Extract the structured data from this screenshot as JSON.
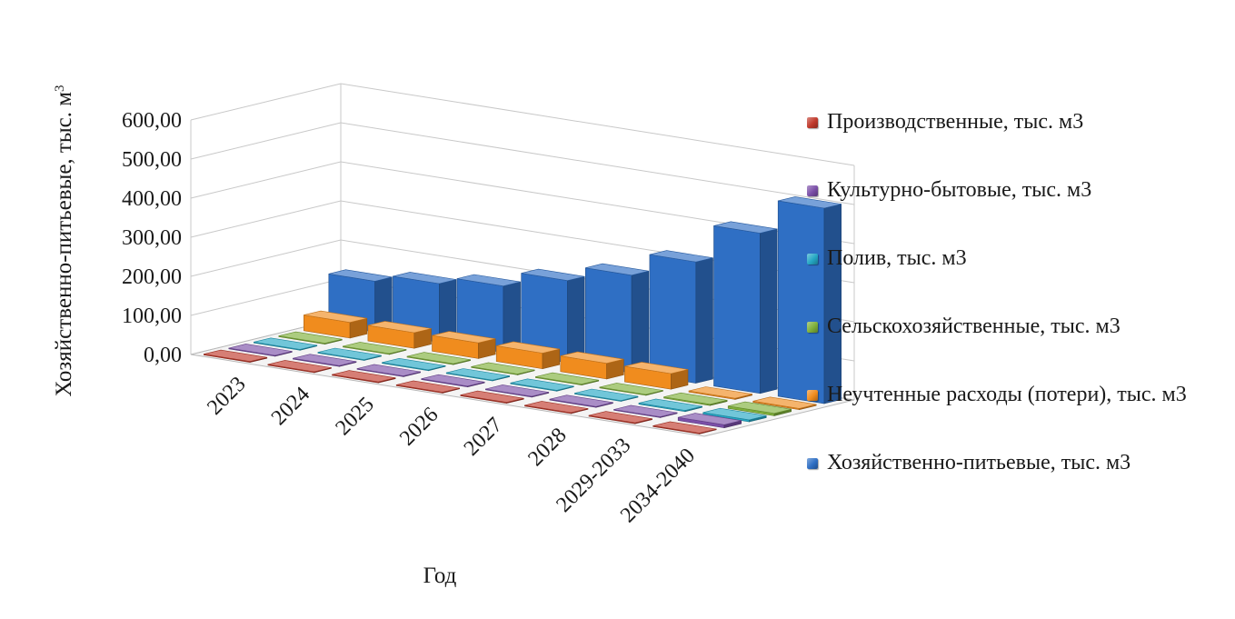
{
  "chart_data": {
    "type": "bar",
    "subtype": "3d-column",
    "categories": [
      "2023",
      "2024",
      "2025",
      "2026",
      "2027",
      "2028",
      "2029-2033",
      "2034-2040"
    ],
    "xlabel": "Год",
    "ylabel": "Хозяйственно-питьевые, тыс. м",
    "ylabel_superscript": "3",
    "ylim": [
      0,
      600
    ],
    "yticks": [
      "0,00",
      "100,00",
      "200,00",
      "300,00",
      "400,00",
      "500,00",
      "600,00"
    ],
    "grid": true,
    "legend_position": "right",
    "series": [
      {
        "name": "Производственные, тыс. м3",
        "color": "#c0392b",
        "values": [
          2,
          2,
          2,
          2,
          2,
          2,
          2,
          2
        ]
      },
      {
        "name": "Культурно-бытовые, тыс. м3",
        "color": "#7b4fa8",
        "values": [
          2,
          2,
          2,
          2,
          2,
          2,
          2,
          8
        ]
      },
      {
        "name": "Полив, тыс. м3",
        "color": "#25a7c4",
        "values": [
          2,
          2,
          2,
          2,
          2,
          2,
          3,
          5
        ]
      },
      {
        "name": "Сельскохозяйственные, тыс. м3",
        "color": "#7fb03a",
        "values": [
          2,
          2,
          2,
          2,
          2,
          2,
          3,
          6
        ]
      },
      {
        "name": "Неучтенные расходы (потери), тыс. м3",
        "color": "#f08c1e",
        "values": [
          40,
          40,
          40,
          40,
          40,
          40,
          3,
          3
        ]
      },
      {
        "name": "Хозяйственно-питьевые, тыс. м3",
        "color": "#2f6fc4",
        "values": [
          130,
          150,
          170,
          210,
          250,
          310,
          410,
          500
        ]
      }
    ]
  }
}
